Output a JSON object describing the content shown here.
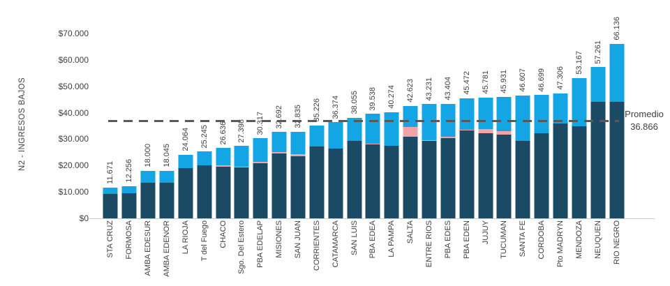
{
  "chart_data": {
    "type": "bar",
    "stacked": true,
    "ylabel": "N2 - INGRESOS BAJOS",
    "ylim": [
      0,
      70000
    ],
    "ytick_step": 10000,
    "ytick_labels": [
      "$0",
      "$10.000",
      "$20.000",
      "$30.000",
      "$40.000",
      "$50.000",
      "$60.000",
      "$70.000"
    ],
    "grid": false,
    "legend": "none",
    "categories": [
      "STA CRUZ",
      "FORMOSA",
      "AMBA EDESUR",
      "AMBA EDENOR",
      "LA RIOJA",
      "T del Fuego",
      "CHACO",
      "Sgo. Del Estero",
      "PBA EDELAP",
      "MISIONES",
      "SAN JUAN",
      "CORRIENTES",
      "CATAMARCA",
      "SAN LUIS",
      "PBA EDEA",
      "LA PAMPA",
      "SALTA",
      "ENTRE RIOS",
      "PBA EDES",
      "PBA EDEN",
      "JUJUY",
      "TUCUMAN",
      "SANTA FE",
      "CORDOBA",
      "Pto MADRYN",
      "MENDOZA",
      "NEUQUEN",
      "RIO NEGRO"
    ],
    "totals": [
      11671,
      12256,
      18000,
      18045,
      24064,
      25245,
      26636,
      27398,
      30317,
      32692,
      32835,
      35226,
      36374,
      38055,
      39538,
      40274,
      42623,
      43231,
      43404,
      45472,
      45781,
      45931,
      46607,
      46699,
      47306,
      53167,
      57261,
      66136
    ],
    "total_labels": [
      "11.671",
      "12.256",
      "18.000",
      "18.045",
      "24.064",
      "25.245",
      "26.636",
      "27.398",
      "30.317",
      "32.692",
      "32.835",
      "35.226",
      "36.374",
      "38.055",
      "39.538",
      "40.274",
      "42.623",
      "43.231",
      "43.404",
      "45.472",
      "45.781",
      "45.931",
      "46.607",
      "46.699",
      "47.306",
      "53.167",
      "57.261",
      "66.136"
    ],
    "series": [
      {
        "name": "segment-dark-navy",
        "color": "#1B4A64",
        "values": [
          9300,
          9500,
          13400,
          13400,
          19100,
          20000,
          19600,
          19200,
          20800,
          24700,
          23400,
          27300,
          26300,
          29200,
          27900,
          27400,
          31000,
          29200,
          30500,
          33200,
          32300,
          31700,
          29400,
          32300,
          35800,
          34900,
          44100,
          44100
        ]
      },
      {
        "name": "segment-pink",
        "color": "#F2A3A8",
        "values": [
          0,
          0,
          0,
          0,
          0,
          0,
          400,
          400,
          500,
          300,
          1000,
          0,
          0,
          0,
          300,
          0,
          3500,
          300,
          400,
          400,
          1500,
          1200,
          0,
          0,
          0,
          0,
          0,
          0
        ]
      },
      {
        "name": "segment-light-blue",
        "color": "#14A5E5",
        "values": [
          2371,
          2756,
          4600,
          4645,
          4964,
          5245,
          6636,
          7798,
          9017,
          7692,
          8435,
          7926,
          10074,
          8855,
          11338,
          12874,
          8123,
          13731,
          12504,
          11872,
          11981,
          13031,
          17207,
          14399,
          11506,
          18267,
          13161,
          22036
        ]
      }
    ],
    "average_line": {
      "label": "Promedio",
      "value_label": "36.866",
      "value": 36866,
      "color": "#595959"
    },
    "colors": {
      "text": "#404040",
      "axis": "#C9C9C9",
      "background": "#FFFFFF"
    }
  }
}
